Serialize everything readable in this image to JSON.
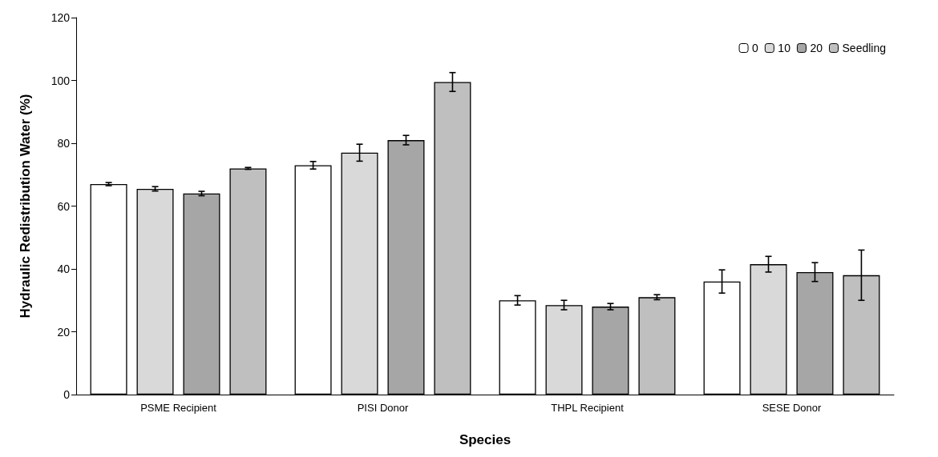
{
  "chart_data": {
    "type": "bar",
    "xlabel": "Species",
    "ylabel": "Hydraulic Redistribution Water (%)",
    "categories": [
      "PSME Recipient",
      "PISI Donor",
      "THPL Recipient",
      "SESE Donor"
    ],
    "series": [
      {
        "name": "0",
        "color": "#ffffff",
        "values": [
          67,
          73,
          30,
          36
        ],
        "errors": [
          0.5,
          1.2,
          1.5,
          3.7
        ]
      },
      {
        "name": "10",
        "color": "#d9d9d9",
        "values": [
          65.5,
          77,
          28.5,
          41.5
        ],
        "errors": [
          0.7,
          2.7,
          1.5,
          2.5
        ]
      },
      {
        "name": "20",
        "color": "#a6a6a6",
        "values": [
          64,
          81,
          28,
          39
        ],
        "errors": [
          0.7,
          1.5,
          1,
          3
        ]
      },
      {
        "name": "Seedling",
        "color": "#bfbfbf",
        "values": [
          72,
          99.5,
          31,
          38
        ],
        "errors": [
          0.3,
          3,
          0.8,
          8
        ]
      }
    ],
    "ylim": [
      0,
      120
    ],
    "yticks": [
      0,
      20,
      40,
      60,
      80,
      100,
      120
    ],
    "grid": false,
    "legend": "top right"
  }
}
